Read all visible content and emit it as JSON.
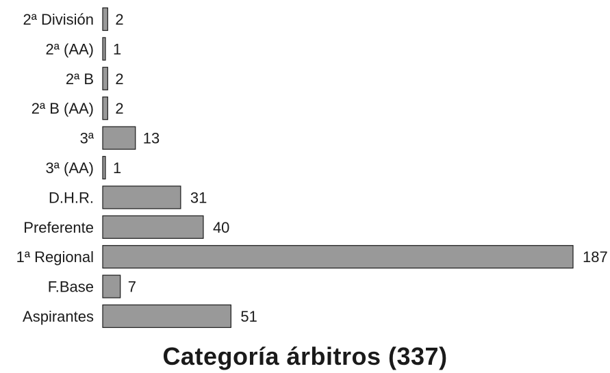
{
  "chart_data": {
    "type": "bar",
    "orientation": "horizontal",
    "title": "Categoría árbitros (337)",
    "categories": [
      "2ª División",
      "2ª (AA)",
      "2ª B",
      "2ª B (AA)",
      "3ª",
      "3ª (AA)",
      "D.H.R.",
      "Preferente",
      "1ª Regional",
      "F.Base",
      "Aspirantes"
    ],
    "values": [
      2,
      1,
      2,
      2,
      13,
      1,
      31,
      40,
      187,
      7,
      51
    ],
    "xlim": [
      0,
      187
    ],
    "grid": false,
    "legend": "none",
    "bar_color": "#999999"
  }
}
